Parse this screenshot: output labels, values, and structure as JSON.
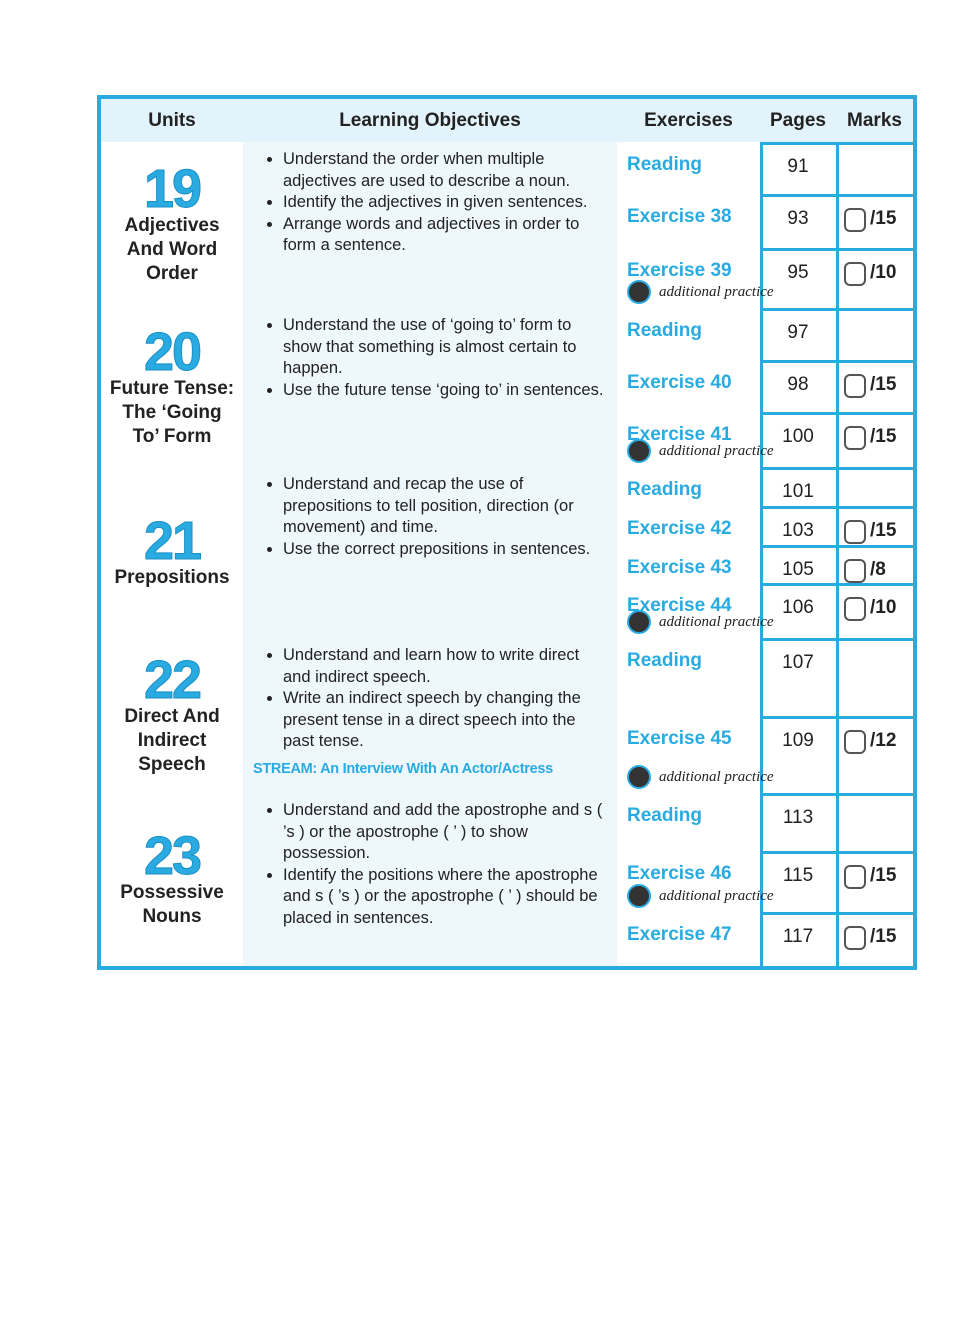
{
  "table": {
    "headers": [
      "Units",
      "Learning Objectives",
      "Exercises",
      "Pages",
      "Marks"
    ],
    "units": [
      {
        "number": "19",
        "name": "Adjectives And Word Order",
        "objectives": [
          "Understand the order when multiple adjectives are used to describe a noun.",
          "Identify the adjectives in given sentences.",
          "Arrange words and adjectives in order to form a sentence."
        ],
        "exercises": [
          {
            "name": "Reading",
            "page": 91
          },
          {
            "name": "Exercise 38",
            "page": 93,
            "marks": "/15"
          },
          {
            "name": "Exercise 39",
            "page": 95,
            "marks": "/10",
            "additional": "additional practice"
          }
        ]
      },
      {
        "number": "20",
        "name": "Future Tense: The ‘Going To’ Form",
        "objectives": [
          "Understand the use of ‘going to’ form to show that something is almost certain to happen.",
          "Use the future tense ‘going to’ in sentences."
        ],
        "exercises": [
          {
            "name": "Reading",
            "page": 97
          },
          {
            "name": "Exercise 40",
            "page": 98,
            "marks": "/15"
          },
          {
            "name": "Exercise 41",
            "page": 100,
            "marks": "/15",
            "additional": "additional practice"
          }
        ]
      },
      {
        "number": "21",
        "name": "Prepositions",
        "objectives": [
          "Understand and recap the use of prepositions to tell position, direction (or movement) and time.",
          "Use the correct prepositions in sentences."
        ],
        "exercises": [
          {
            "name": "Reading",
            "page": 101
          },
          {
            "name": "Exercise 42",
            "page": 103,
            "marks": "/15"
          },
          {
            "name": "Exercise 43",
            "page": 105,
            "marks": "/8"
          },
          {
            "name": "Exercise 44",
            "page": 106,
            "marks": "/10",
            "additional": "additional practice"
          }
        ]
      },
      {
        "number": "22",
        "name": "Direct And Indirect Speech",
        "objectives": [
          "Understand and learn how to write direct and indirect speech.",
          "Write an indirect speech by changing the present tense in a direct speech into the past tense."
        ],
        "stream": "STREAM: An Interview With An Actor/Actress",
        "exercises": [
          {
            "name": "Reading",
            "page": 107
          },
          {
            "name": "Exercise 45",
            "page": 109,
            "marks": "/12",
            "additional": "additional practice"
          }
        ]
      },
      {
        "number": "23",
        "name": "Possessive Nouns",
        "objectives": [
          "Understand and add the apostrophe and s ( ’s ) or the apostrophe ( ’ )  to show possession.",
          "Identify the positions where the apostrophe and s ( ’s ) or the apostrophe ( ’ ) should be placed in sentences."
        ],
        "exercises": [
          {
            "name": "Reading",
            "page": 113
          },
          {
            "name": "Exercise 46",
            "page": 115,
            "marks": "/15",
            "additional": "additional practice"
          },
          {
            "name": "Exercise 47",
            "page": 117,
            "marks": "/15"
          }
        ]
      }
    ]
  }
}
